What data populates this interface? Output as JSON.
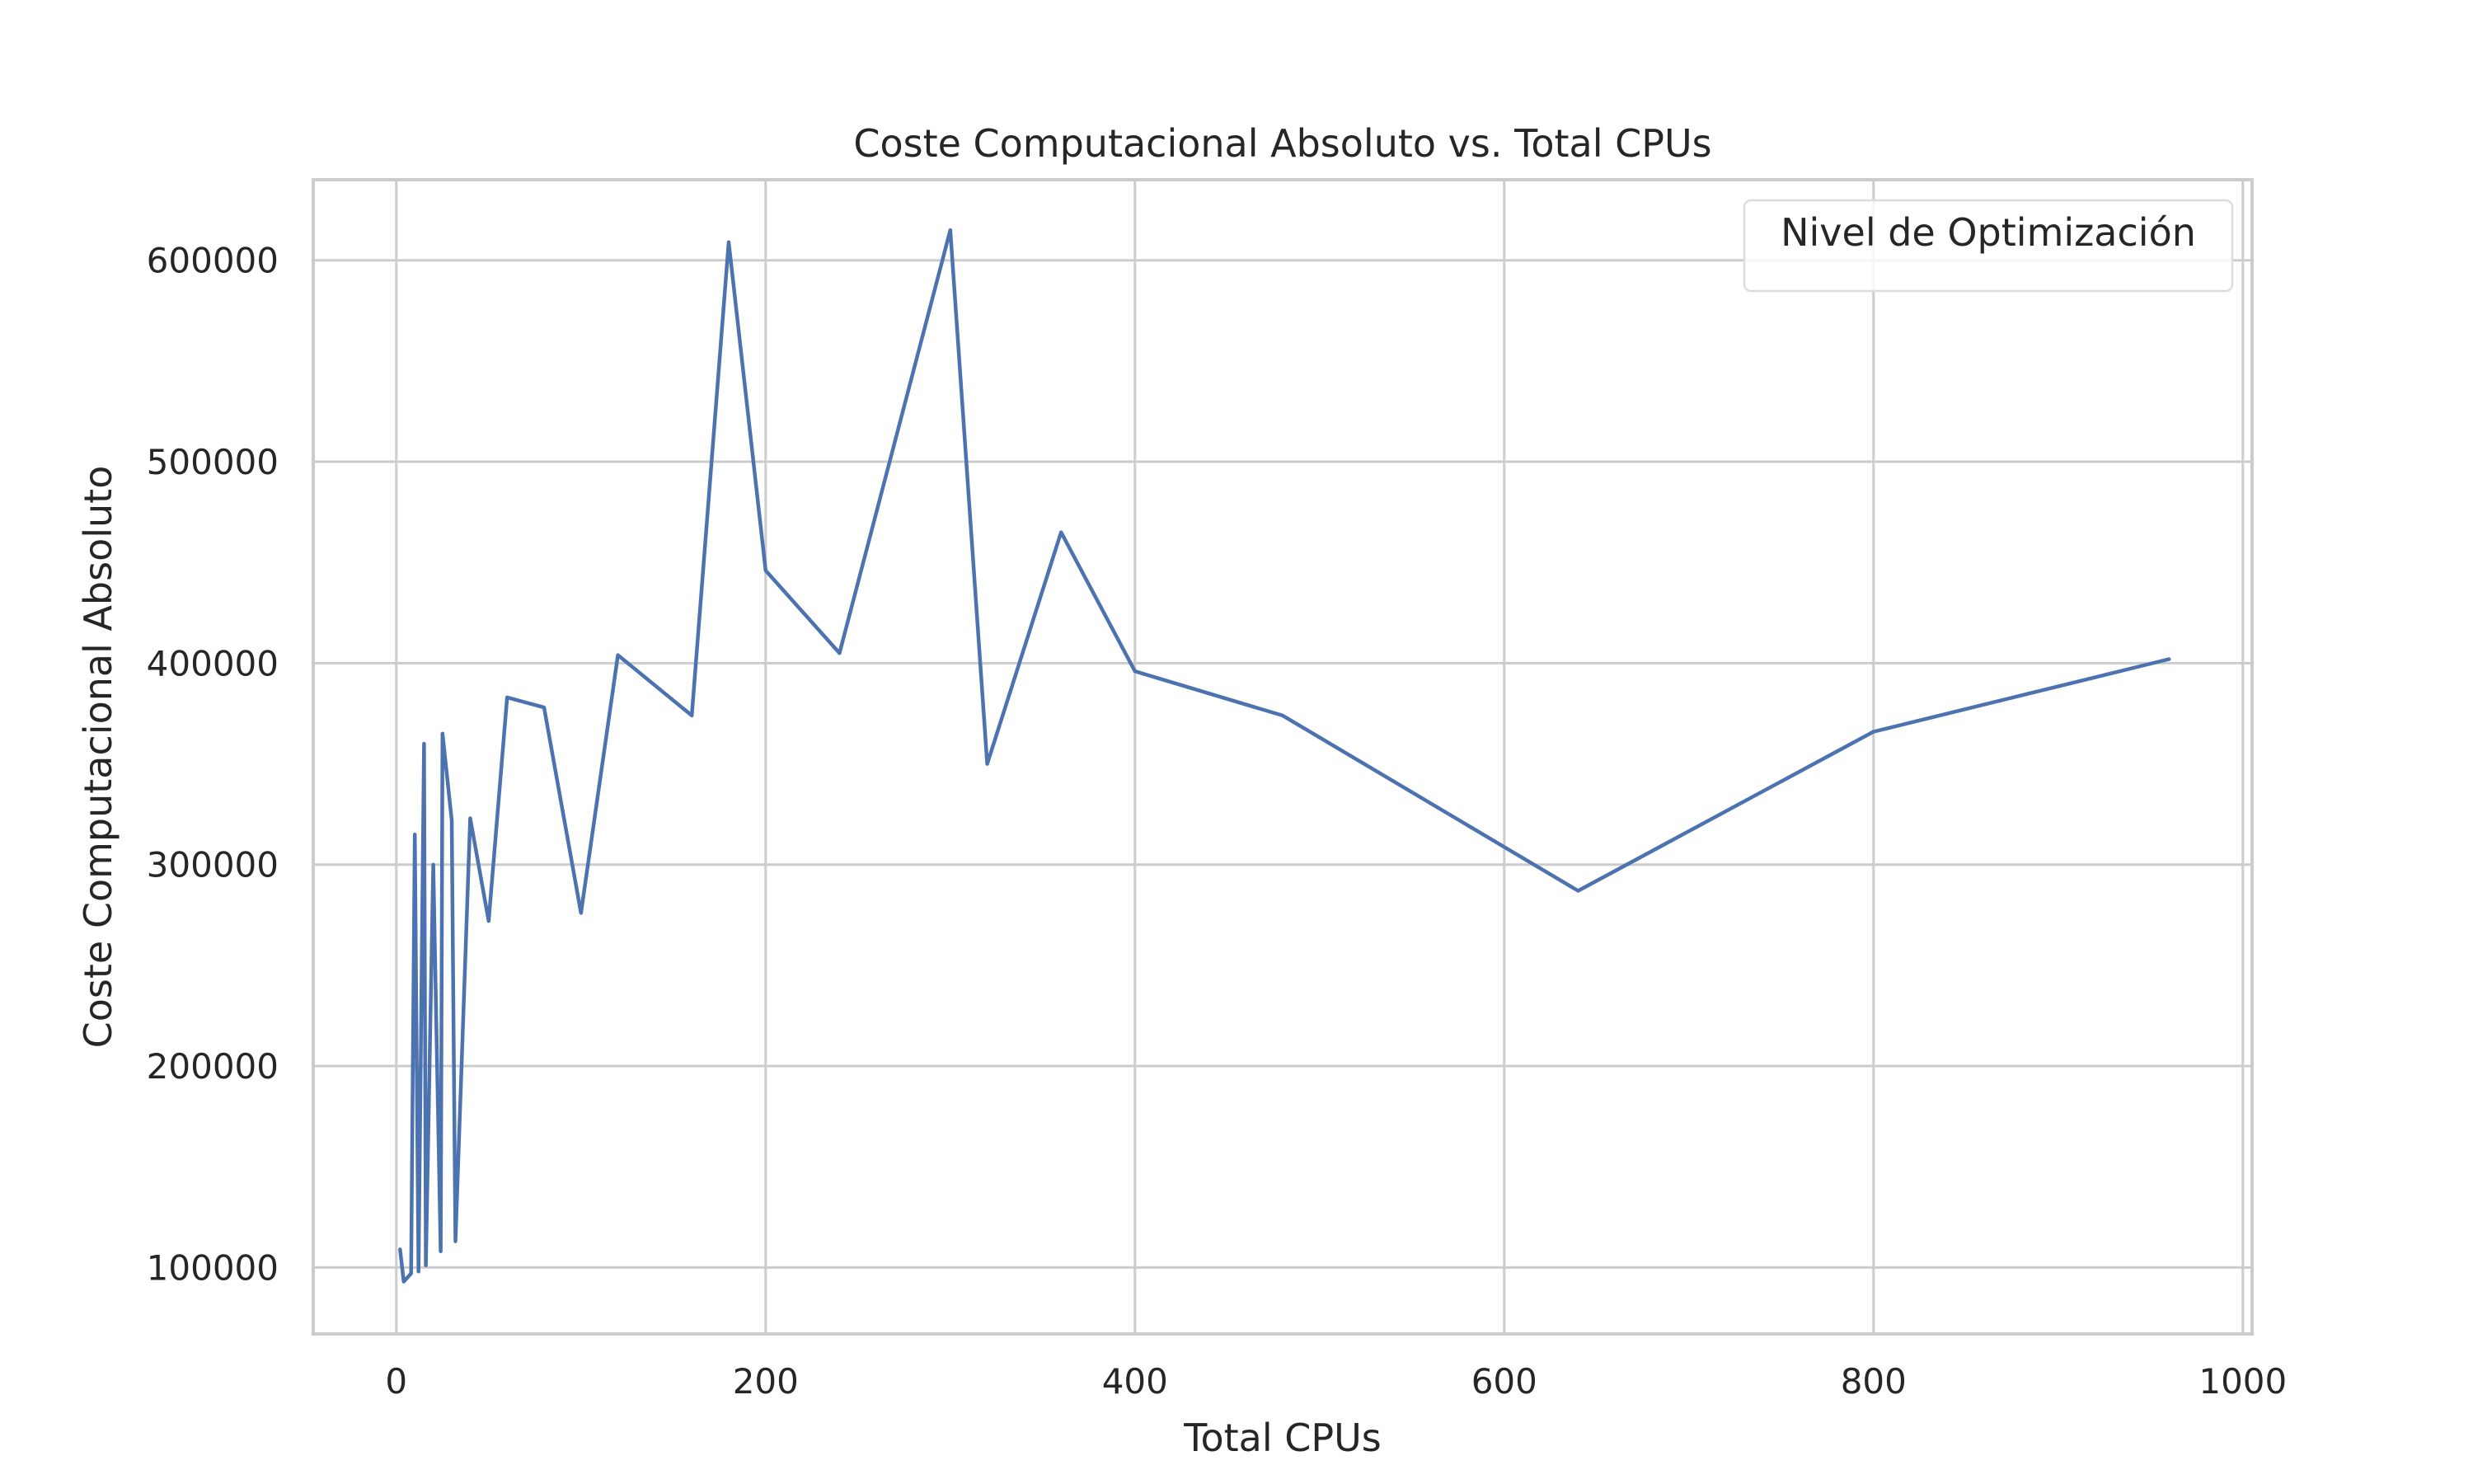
{
  "chart_data": {
    "type": "line",
    "title": "Coste Computacional Absoluto vs. Total CPUs",
    "xlabel": "Total CPUs",
    "ylabel": "Coste Computacional Absoluto",
    "xlim": [
      -45,
      1005
    ],
    "ylim": [
      67000,
      640000
    ],
    "xticks": [
      0,
      200,
      400,
      600,
      800,
      1000
    ],
    "yticks": [
      100000,
      200000,
      300000,
      400000,
      500000,
      600000
    ],
    "grid": true,
    "legend": {
      "title": "Nivel de Optimización",
      "placement": "top-right"
    },
    "series": [
      {
        "color": "#4c72b0",
        "x": [
          2,
          4,
          8,
          10,
          12,
          15,
          16,
          20,
          24,
          25,
          30,
          32,
          40,
          50,
          60,
          80,
          100,
          120,
          160,
          180,
          200,
          240,
          300,
          320,
          360,
          400,
          480,
          640,
          800,
          960
        ],
        "y": [
          109000,
          93000,
          97000,
          315000,
          98000,
          360000,
          101000,
          300000,
          108000,
          365000,
          322000,
          113000,
          323000,
          272000,
          383000,
          378000,
          276000,
          404000,
          374000,
          609000,
          446000,
          405000,
          615000,
          350000,
          465000,
          396000,
          374000,
          287000,
          366000,
          402000
        ]
      }
    ]
  }
}
